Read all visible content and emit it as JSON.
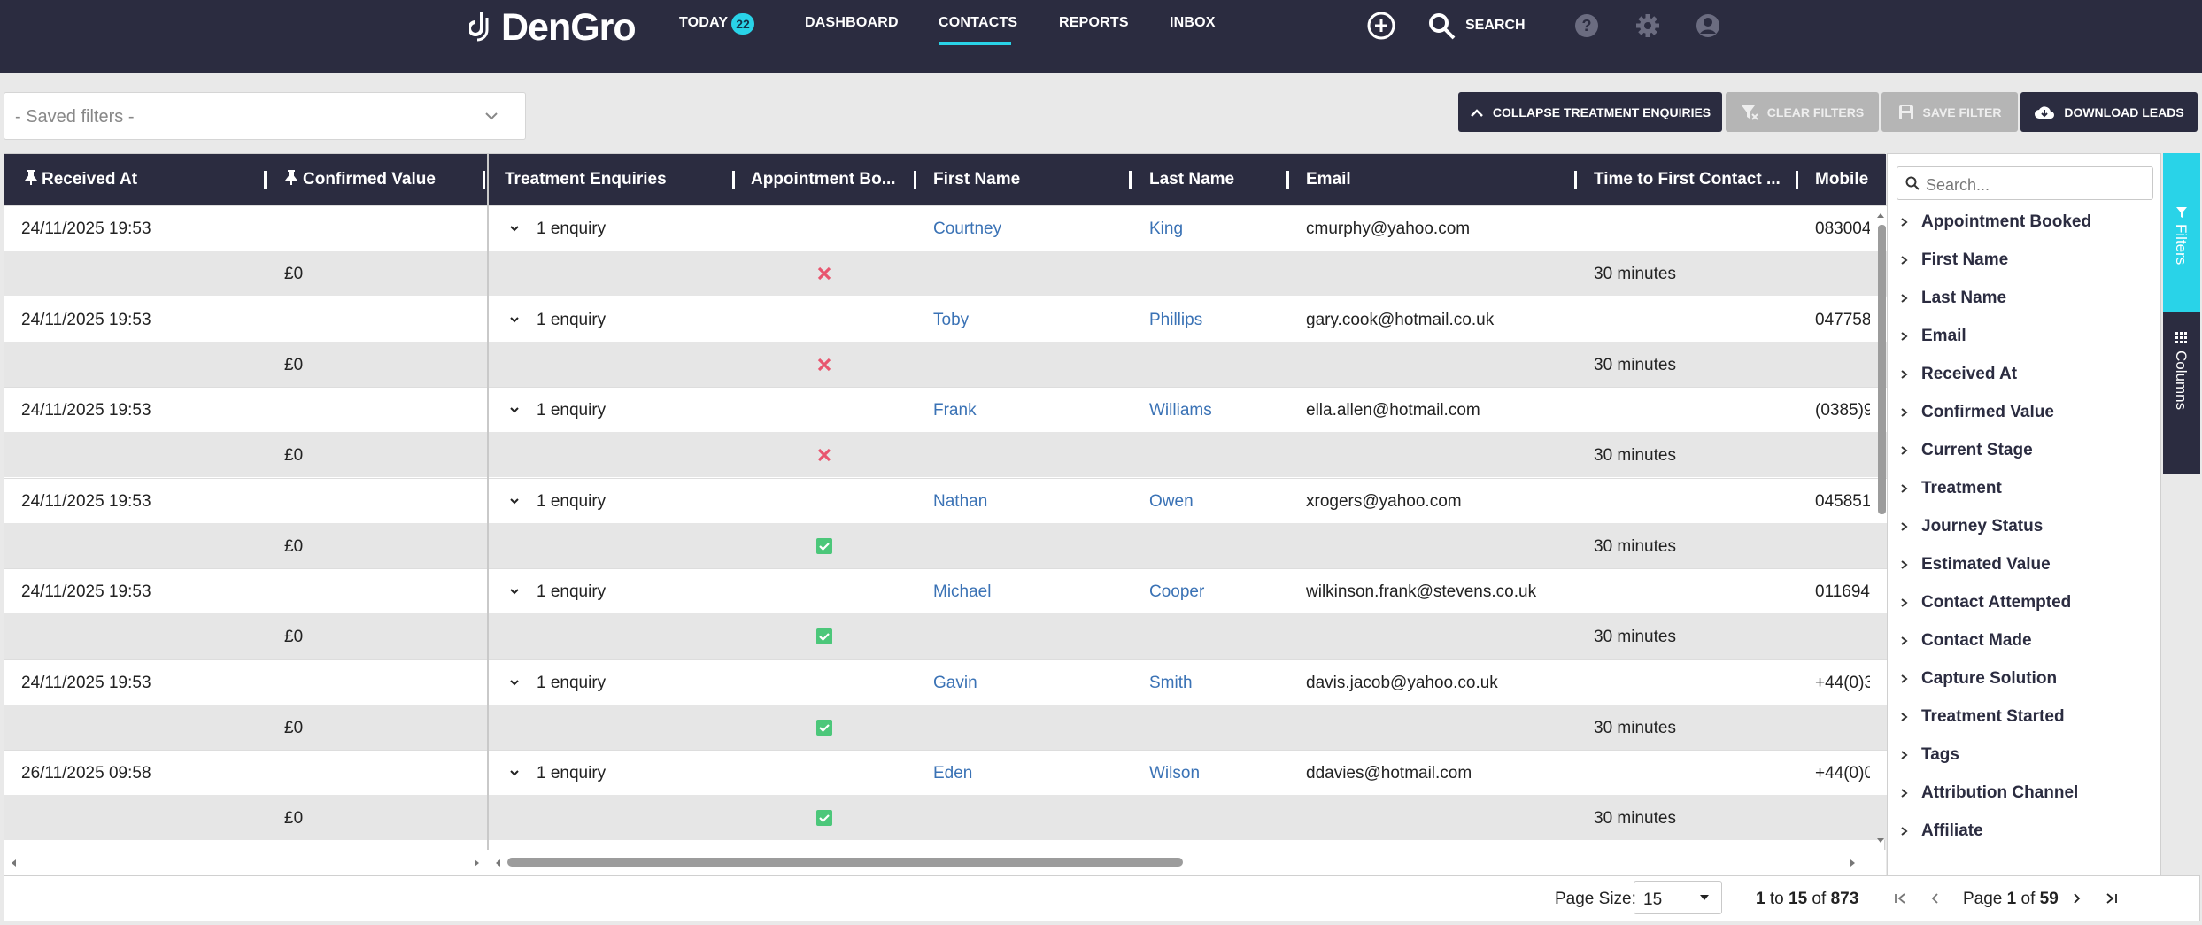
{
  "brand": {
    "name": "DenGro"
  },
  "nav": {
    "today": "TODAY",
    "today_count": "22",
    "dashboard": "DASHBOARD",
    "contacts": "CONTACTS",
    "reports": "REPORTS",
    "inbox": "INBOX",
    "search": "SEARCH"
  },
  "toolbar": {
    "saved_filters_placeholder": "- Saved filters -",
    "collapse": "COLLAPSE TREATMENT ENQUIRIES",
    "clear_filters": "CLEAR FILTERS",
    "save_filter": "SAVE FILTER",
    "download": "DOWNLOAD LEADS"
  },
  "columns": {
    "received_at": "Received At",
    "confirmed_value": "Confirmed Value",
    "treatment_enquiries": "Treatment Enquiries",
    "appointment_booked": "Appointment Bo...",
    "first_name": "First Name",
    "last_name": "Last Name",
    "email": "Email",
    "time_to_first_contact": "Time to First Contact ...",
    "mobile": "Mobile"
  },
  "rows": [
    {
      "received": "24/11/2025 19:53",
      "enquiries": "1 enquiry",
      "first": "Courtney",
      "last": "King",
      "email": "cmurphy@yahoo.com",
      "mobile": "083004",
      "value": "£0",
      "booked": false,
      "time": "30 minutes"
    },
    {
      "received": "24/11/2025 19:53",
      "enquiries": "1 enquiry",
      "first": "Toby",
      "last": "Phillips",
      "email": "gary.cook@hotmail.co.uk",
      "mobile": "047758",
      "value": "£0",
      "booked": false,
      "time": "30 minutes"
    },
    {
      "received": "24/11/2025 19:53",
      "enquiries": "1 enquiry",
      "first": "Frank",
      "last": "Williams",
      "email": "ella.allen@hotmail.com",
      "mobile": "(0385)9",
      "value": "£0",
      "booked": false,
      "time": "30 minutes"
    },
    {
      "received": "24/11/2025 19:53",
      "enquiries": "1 enquiry",
      "first": "Nathan",
      "last": "Owen",
      "email": "xrogers@yahoo.com",
      "mobile": "045851",
      "value": "£0",
      "booked": true,
      "time": "30 minutes"
    },
    {
      "received": "24/11/2025 19:53",
      "enquiries": "1 enquiry",
      "first": "Michael",
      "last": "Cooper",
      "email": "wilkinson.frank@stevens.co.uk",
      "mobile": "011694",
      "value": "£0",
      "booked": true,
      "time": "30 minutes"
    },
    {
      "received": "24/11/2025 19:53",
      "enquiries": "1 enquiry",
      "first": "Gavin",
      "last": "Smith",
      "email": "davis.jacob@yahoo.co.uk",
      "mobile": "+44(0)3",
      "value": "£0",
      "booked": true,
      "time": "30 minutes"
    },
    {
      "received": "26/11/2025 09:58",
      "enquiries": "1 enquiry",
      "first": "Eden",
      "last": "Wilson",
      "email": "ddavies@hotmail.com",
      "mobile": "+44(0)0",
      "value": "£0",
      "booked": true,
      "time": "30 minutes"
    }
  ],
  "sidebar": {
    "search_placeholder": "Search...",
    "items": [
      "Appointment Booked",
      "First Name",
      "Last Name",
      "Email",
      "Received At",
      "Confirmed Value",
      "Current Stage",
      "Treatment",
      "Journey Status",
      "Estimated Value",
      "Contact Attempted",
      "Contact Made",
      "Capture Solution",
      "Treatment Started",
      "Tags",
      "Attribution Channel",
      "Affiliate"
    ],
    "tab_filters": "Filters",
    "tab_columns": "Columns"
  },
  "pager": {
    "page_size_label": "Page Size:",
    "page_size": "15",
    "from": "1",
    "to_word": "to",
    "to": "15",
    "of_word": "of",
    "total": "873",
    "page_word": "Page",
    "page": "1",
    "pages": "59"
  },
  "colors": {
    "navy": "#2b2c40",
    "accent": "#29d3e8",
    "link": "#3a72b5",
    "no": "#e8566f",
    "yes": "#4cc77a"
  }
}
